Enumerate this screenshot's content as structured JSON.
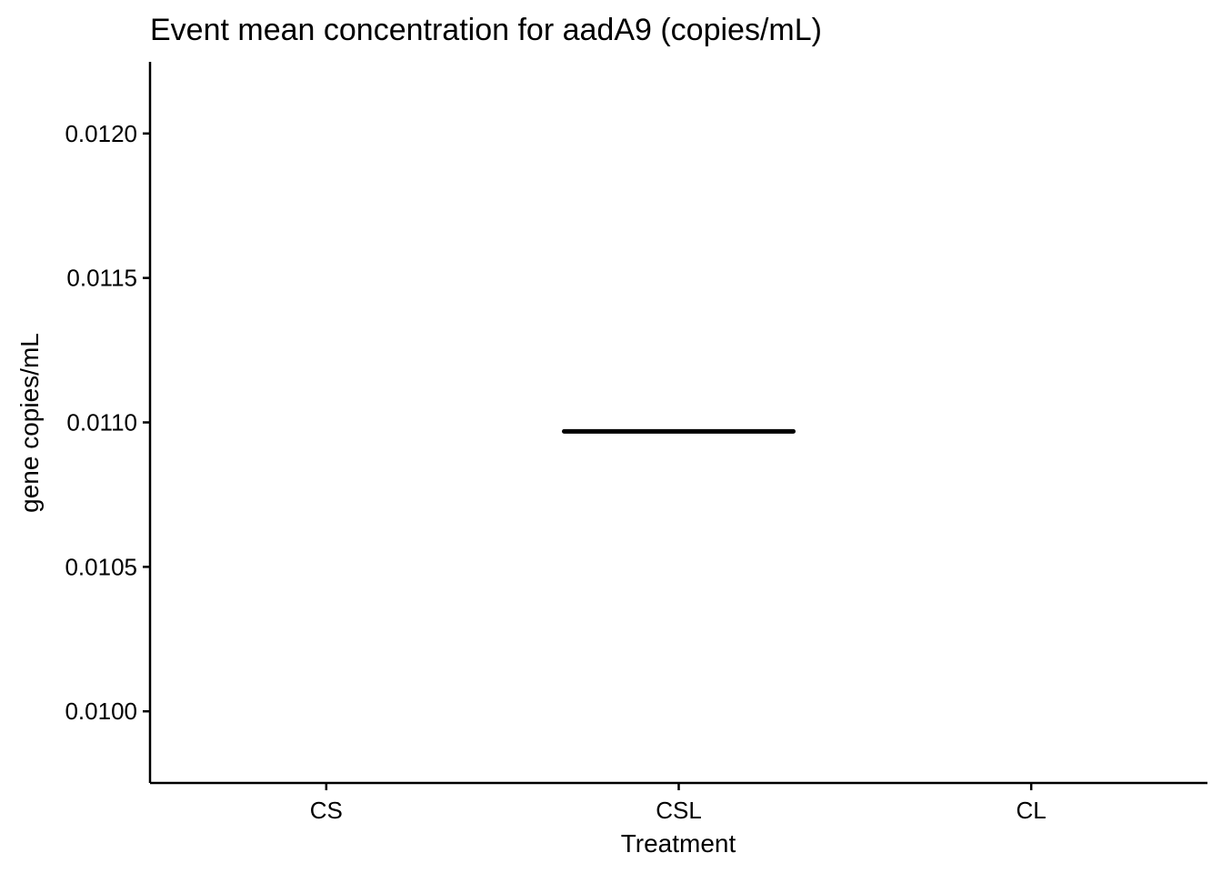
{
  "chart_data": {
    "type": "boxplot",
    "title": "Event mean concentration for aadA9 (copies/mL)",
    "xlabel": "Treatment",
    "ylabel": "gene copies/mL",
    "categories": [
      "CS",
      "CSL",
      "CL"
    ],
    "yticks": [
      "0.0100",
      "0.0105",
      "0.0110",
      "0.0115",
      "0.0120"
    ],
    "ylim": [
      0.009752,
      0.012248
    ],
    "grid": false,
    "series": [
      {
        "values": [
          {
            "category": "CSL",
            "median": 0.010969
          }
        ]
      }
    ],
    "colors": {
      "axis": "#000000",
      "median": "#000000",
      "background": "#ffffff"
    }
  }
}
